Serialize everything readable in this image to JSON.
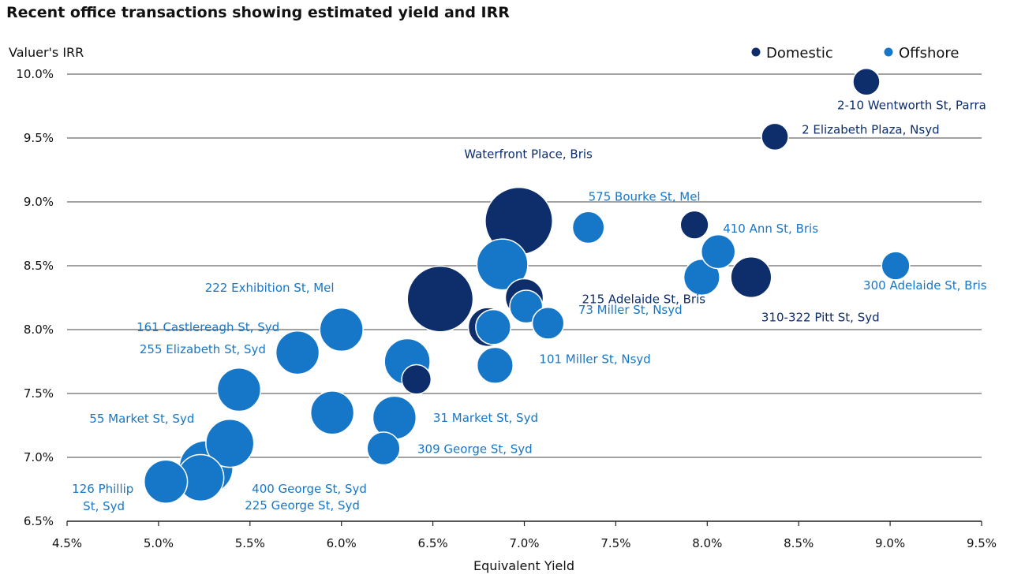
{
  "chart_data": {
    "type": "scatter",
    "title": "Recent office transactions showing estimated yield and IRR",
    "xlabel": "Equivalent Yield",
    "ylabel": "Valuer's IRR",
    "xlim": [
      4.5,
      9.5
    ],
    "ylim": [
      6.5,
      10.0
    ],
    "x_ticks": [
      "4.5%",
      "5.0%",
      "5.5%",
      "6.0%",
      "6.5%",
      "7.0%",
      "7.5%",
      "8.0%",
      "8.5%",
      "9.0%",
      "9.5%"
    ],
    "y_ticks": [
      "6.5%",
      "7.0%",
      "7.5%",
      "8.0%",
      "8.5%",
      "9.0%",
      "9.5%",
      "10.0%"
    ],
    "grid": "horizontal",
    "legend_position": "top-right",
    "colors": {
      "Domestic": "#0d2d6b",
      "Offshore": "#1677c8"
    },
    "series": [
      {
        "name": "Domestic",
        "points": [
          {
            "x": 8.87,
            "y": 9.94,
            "size": 1.0,
            "label": "2-10 Wentworth St, Parra"
          },
          {
            "x": 8.37,
            "y": 9.51,
            "size": 1.0,
            "label": "2 Elizabeth Plaza, Nsyd"
          },
          {
            "x": 6.97,
            "y": 8.85,
            "size": 6.3,
            "label": "Waterfront Place, Bris"
          },
          {
            "x": 7.93,
            "y": 8.82,
            "size": 1.1,
            "label": ""
          },
          {
            "x": 7.0,
            "y": 8.25,
            "size": 2.0,
            "label": "215 Adelaide St, Bris"
          },
          {
            "x": 8.24,
            "y": 8.41,
            "size": 2.3,
            "label": "310-322 Pitt St, Syd"
          },
          {
            "x": 6.54,
            "y": 8.24,
            "size": 6.0,
            "label": ""
          },
          {
            "x": 6.8,
            "y": 8.02,
            "size": 2.1,
            "label": ""
          },
          {
            "x": 6.41,
            "y": 7.61,
            "size": 1.2,
            "label": ""
          }
        ]
      },
      {
        "name": "Offshore",
        "points": [
          {
            "x": 7.35,
            "y": 8.8,
            "size": 1.4,
            "label": "575 Bourke St, Mel"
          },
          {
            "x": 8.06,
            "y": 8.61,
            "size": 1.6,
            "label": "410 Ann St, Bris"
          },
          {
            "x": 9.03,
            "y": 8.5,
            "size": 1.1,
            "label": "300 Adelaide St, Bris"
          },
          {
            "x": 7.97,
            "y": 8.41,
            "size": 1.8,
            "label": ""
          },
          {
            "x": 6.88,
            "y": 8.51,
            "size": 3.6,
            "label": ""
          },
          {
            "x": 7.01,
            "y": 8.18,
            "size": 1.5,
            "label": "73 Miller St, Nsyd"
          },
          {
            "x": 7.13,
            "y": 8.05,
            "size": 1.4,
            "label": ""
          },
          {
            "x": 6.83,
            "y": 8.02,
            "size": 1.7,
            "label": ""
          },
          {
            "x": 6.84,
            "y": 7.72,
            "size": 1.8,
            "label": "101 Miller St, Nsyd"
          },
          {
            "x": 6.0,
            "y": 8.0,
            "size": 2.6,
            "label": "222 Exhibition St, Mel"
          },
          {
            "x": 5.76,
            "y": 7.82,
            "size": 2.6,
            "label": "161 Castlereagh St, Syd"
          },
          {
            "x": 6.36,
            "y": 7.75,
            "size": 2.9,
            "label": ""
          },
          {
            "x": 5.44,
            "y": 7.53,
            "size": 2.6,
            "label": "255 Elizabeth St, Syd"
          },
          {
            "x": 5.95,
            "y": 7.35,
            "size": 2.6,
            "label": ""
          },
          {
            "x": 6.29,
            "y": 7.31,
            "size": 2.6,
            "label": "31 Market St, Syd"
          },
          {
            "x": 6.23,
            "y": 7.07,
            "size": 1.5,
            "label": "309 George St, Syd"
          },
          {
            "x": 5.39,
            "y": 7.11,
            "size": 3.2,
            "label": "55 Market St, Syd"
          },
          {
            "x": 5.26,
            "y": 6.92,
            "size": 4.0,
            "label": "400 George St, Syd"
          },
          {
            "x": 5.23,
            "y": 6.84,
            "size": 3.0,
            "label": "225 George St, Syd"
          },
          {
            "x": 5.04,
            "y": 6.81,
            "size": 2.6,
            "label": "126 Phillip St, Syd"
          }
        ]
      }
    ]
  }
}
